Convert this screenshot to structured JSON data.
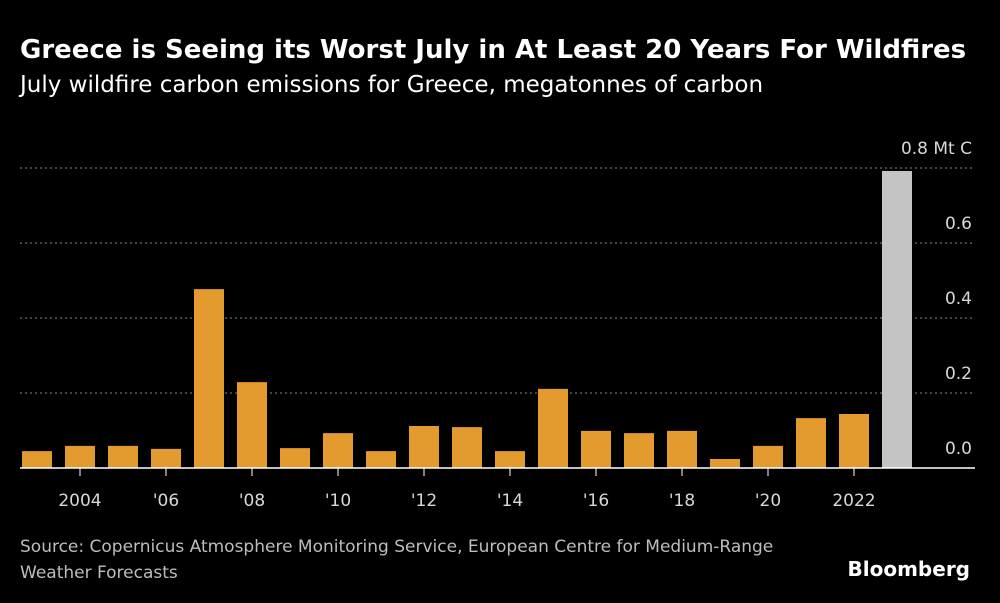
{
  "chart_data": {
    "type": "bar",
    "title": "Greece is Seeing its Worst July in At Least 20 Years For Wildfires",
    "subtitle": "July wildfire carbon emissions for Greece, megatonnes of carbon",
    "source": "Source: Copernicus Atmosphere Monitoring Service, European Centre for Medium-Range Weather Forecasts",
    "brand": "Bloomberg",
    "categories": [
      null,
      "2004",
      null,
      "'06",
      null,
      "'08",
      null,
      "'10",
      null,
      "'12",
      null,
      "'14",
      null,
      "'16",
      null,
      "'18",
      null,
      "'20",
      null,
      "2022",
      null
    ],
    "values": [
      0.045,
      0.059,
      0.059,
      0.051,
      0.477,
      0.229,
      0.053,
      0.093,
      0.045,
      0.112,
      0.109,
      0.045,
      0.211,
      0.099,
      0.093,
      0.099,
      0.024,
      0.059,
      0.133,
      0.144,
      0.792
    ],
    "colors": [
      "#e39a2e",
      "#e39a2e",
      "#e39a2e",
      "#e39a2e",
      "#e39a2e",
      "#e39a2e",
      "#e39a2e",
      "#e39a2e",
      "#e39a2e",
      "#e39a2e",
      "#e39a2e",
      "#e39a2e",
      "#e39a2e",
      "#e39a2e",
      "#e39a2e",
      "#e39a2e",
      "#e39a2e",
      "#e39a2e",
      "#e39a2e",
      "#e39a2e",
      "#c4c4c4"
    ],
    "ylim": [
      0,
      0.8
    ],
    "yticks": [
      {
        "value": 0,
        "label": "0.0"
      },
      0.2,
      0.4,
      0.6,
      {
        "value": 0.8,
        "label": "0.8 Mt C"
      }
    ],
    "grid": true
  }
}
